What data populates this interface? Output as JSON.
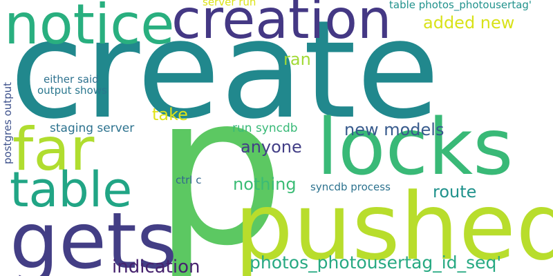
{
  "words": [
    {
      "text": "create",
      "color": "#21888d"
    },
    {
      "text": "p",
      "color": "#5cc862"
    },
    {
      "text": "pushed",
      "color": "#b8dd2c"
    },
    {
      "text": "locks",
      "color": "#39b977"
    },
    {
      "text": "gets",
      "color": "#433e85"
    },
    {
      "text": "creation",
      "color": "#443884"
    },
    {
      "text": "notice",
      "color": "#29af7f"
    },
    {
      "text": "far",
      "color": "#b0dd2f"
    },
    {
      "text": "table",
      "color": "#21a585"
    },
    {
      "text": "indication",
      "color": "#46226e"
    },
    {
      "text": "photos_photousertag_id_seq'",
      "color": "#27a982"
    },
    {
      "text": "new models",
      "color": "#375a8c"
    },
    {
      "text": "anyone",
      "color": "#423e86"
    },
    {
      "text": "nothing",
      "color": "#3bbc75"
    },
    {
      "text": "route",
      "color": "#20928c"
    },
    {
      "text": "added new",
      "color": "#d8e219"
    },
    {
      "text": "ran",
      "color": "#a2da37"
    },
    {
      "text": "take",
      "color": "#dfe318"
    },
    {
      "text": "staging server",
      "color": "#2c728e"
    },
    {
      "text": "run syncdb",
      "color": "#38b977"
    },
    {
      "text": "either said",
      "color": "#2d718e"
    },
    {
      "text": "output shows",
      "color": "#2a778e"
    },
    {
      "text": "ctrl c",
      "color": "#31678e"
    },
    {
      "text": "syncdb process",
      "color": "#2c728e"
    },
    {
      "text": "table photos_photousertag'",
      "color": "#21928c"
    },
    {
      "text": "server run",
      "color": "#dce318"
    },
    {
      "text": "postgres output",
      "color": "#3c508b"
    }
  ]
}
